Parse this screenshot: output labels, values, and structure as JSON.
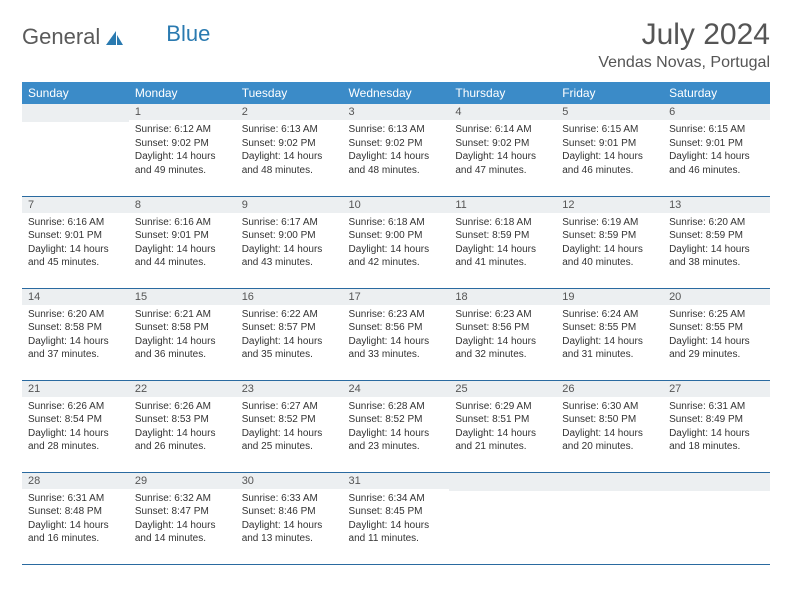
{
  "brand": {
    "part1": "General",
    "part2": "Blue"
  },
  "title": "July 2024",
  "location": "Vendas Novas, Portugal",
  "colors": {
    "header_bg": "#3b8bc8",
    "header_text": "#ffffff",
    "daynum_bg": "#eceff1",
    "border": "#2a6aa0",
    "title_color": "#555555",
    "body_text": "#333333",
    "logo_gray": "#5a5a5a",
    "logo_blue": "#2a7ab0"
  },
  "typography": {
    "month_title_fontsize": 30,
    "location_fontsize": 16,
    "dayheader_fontsize": 12,
    "daynum_fontsize": 11,
    "cell_fontsize": 10,
    "logo_fontsize": 22
  },
  "day_headers": [
    "Sunday",
    "Monday",
    "Tuesday",
    "Wednesday",
    "Thursday",
    "Friday",
    "Saturday"
  ],
  "weeks": [
    [
      {
        "num": "",
        "lines": []
      },
      {
        "num": "1",
        "lines": [
          "Sunrise: 6:12 AM",
          "Sunset: 9:02 PM",
          "Daylight: 14 hours and 49 minutes."
        ]
      },
      {
        "num": "2",
        "lines": [
          "Sunrise: 6:13 AM",
          "Sunset: 9:02 PM",
          "Daylight: 14 hours and 48 minutes."
        ]
      },
      {
        "num": "3",
        "lines": [
          "Sunrise: 6:13 AM",
          "Sunset: 9:02 PM",
          "Daylight: 14 hours and 48 minutes."
        ]
      },
      {
        "num": "4",
        "lines": [
          "Sunrise: 6:14 AM",
          "Sunset: 9:02 PM",
          "Daylight: 14 hours and 47 minutes."
        ]
      },
      {
        "num": "5",
        "lines": [
          "Sunrise: 6:15 AM",
          "Sunset: 9:01 PM",
          "Daylight: 14 hours and 46 minutes."
        ]
      },
      {
        "num": "6",
        "lines": [
          "Sunrise: 6:15 AM",
          "Sunset: 9:01 PM",
          "Daylight: 14 hours and 46 minutes."
        ]
      }
    ],
    [
      {
        "num": "7",
        "lines": [
          "Sunrise: 6:16 AM",
          "Sunset: 9:01 PM",
          "Daylight: 14 hours and 45 minutes."
        ]
      },
      {
        "num": "8",
        "lines": [
          "Sunrise: 6:16 AM",
          "Sunset: 9:01 PM",
          "Daylight: 14 hours and 44 minutes."
        ]
      },
      {
        "num": "9",
        "lines": [
          "Sunrise: 6:17 AM",
          "Sunset: 9:00 PM",
          "Daylight: 14 hours and 43 minutes."
        ]
      },
      {
        "num": "10",
        "lines": [
          "Sunrise: 6:18 AM",
          "Sunset: 9:00 PM",
          "Daylight: 14 hours and 42 minutes."
        ]
      },
      {
        "num": "11",
        "lines": [
          "Sunrise: 6:18 AM",
          "Sunset: 8:59 PM",
          "Daylight: 14 hours and 41 minutes."
        ]
      },
      {
        "num": "12",
        "lines": [
          "Sunrise: 6:19 AM",
          "Sunset: 8:59 PM",
          "Daylight: 14 hours and 40 minutes."
        ]
      },
      {
        "num": "13",
        "lines": [
          "Sunrise: 6:20 AM",
          "Sunset: 8:59 PM",
          "Daylight: 14 hours and 38 minutes."
        ]
      }
    ],
    [
      {
        "num": "14",
        "lines": [
          "Sunrise: 6:20 AM",
          "Sunset: 8:58 PM",
          "Daylight: 14 hours and 37 minutes."
        ]
      },
      {
        "num": "15",
        "lines": [
          "Sunrise: 6:21 AM",
          "Sunset: 8:58 PM",
          "Daylight: 14 hours and 36 minutes."
        ]
      },
      {
        "num": "16",
        "lines": [
          "Sunrise: 6:22 AM",
          "Sunset: 8:57 PM",
          "Daylight: 14 hours and 35 minutes."
        ]
      },
      {
        "num": "17",
        "lines": [
          "Sunrise: 6:23 AM",
          "Sunset: 8:56 PM",
          "Daylight: 14 hours and 33 minutes."
        ]
      },
      {
        "num": "18",
        "lines": [
          "Sunrise: 6:23 AM",
          "Sunset: 8:56 PM",
          "Daylight: 14 hours and 32 minutes."
        ]
      },
      {
        "num": "19",
        "lines": [
          "Sunrise: 6:24 AM",
          "Sunset: 8:55 PM",
          "Daylight: 14 hours and 31 minutes."
        ]
      },
      {
        "num": "20",
        "lines": [
          "Sunrise: 6:25 AM",
          "Sunset: 8:55 PM",
          "Daylight: 14 hours and 29 minutes."
        ]
      }
    ],
    [
      {
        "num": "21",
        "lines": [
          "Sunrise: 6:26 AM",
          "Sunset: 8:54 PM",
          "Daylight: 14 hours and 28 minutes."
        ]
      },
      {
        "num": "22",
        "lines": [
          "Sunrise: 6:26 AM",
          "Sunset: 8:53 PM",
          "Daylight: 14 hours and 26 minutes."
        ]
      },
      {
        "num": "23",
        "lines": [
          "Sunrise: 6:27 AM",
          "Sunset: 8:52 PM",
          "Daylight: 14 hours and 25 minutes."
        ]
      },
      {
        "num": "24",
        "lines": [
          "Sunrise: 6:28 AM",
          "Sunset: 8:52 PM",
          "Daylight: 14 hours and 23 minutes."
        ]
      },
      {
        "num": "25",
        "lines": [
          "Sunrise: 6:29 AM",
          "Sunset: 8:51 PM",
          "Daylight: 14 hours and 21 minutes."
        ]
      },
      {
        "num": "26",
        "lines": [
          "Sunrise: 6:30 AM",
          "Sunset: 8:50 PM",
          "Daylight: 14 hours and 20 minutes."
        ]
      },
      {
        "num": "27",
        "lines": [
          "Sunrise: 6:31 AM",
          "Sunset: 8:49 PM",
          "Daylight: 14 hours and 18 minutes."
        ]
      }
    ],
    [
      {
        "num": "28",
        "lines": [
          "Sunrise: 6:31 AM",
          "Sunset: 8:48 PM",
          "Daylight: 14 hours and 16 minutes."
        ]
      },
      {
        "num": "29",
        "lines": [
          "Sunrise: 6:32 AM",
          "Sunset: 8:47 PM",
          "Daylight: 14 hours and 14 minutes."
        ]
      },
      {
        "num": "30",
        "lines": [
          "Sunrise: 6:33 AM",
          "Sunset: 8:46 PM",
          "Daylight: 14 hours and 13 minutes."
        ]
      },
      {
        "num": "31",
        "lines": [
          "Sunrise: 6:34 AM",
          "Sunset: 8:45 PM",
          "Daylight: 14 hours and 11 minutes."
        ]
      },
      {
        "num": "",
        "lines": []
      },
      {
        "num": "",
        "lines": []
      },
      {
        "num": "",
        "lines": []
      }
    ]
  ]
}
